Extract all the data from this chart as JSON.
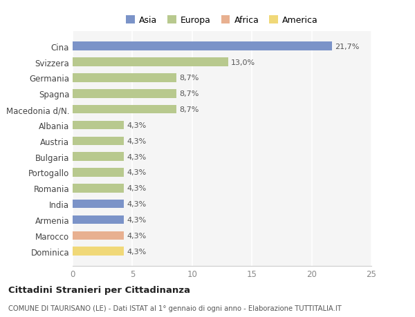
{
  "categories": [
    "Cina",
    "Svizzera",
    "Germania",
    "Spagna",
    "Macedonia d/N.",
    "Albania",
    "Austria",
    "Bulgaria",
    "Portogallo",
    "Romania",
    "India",
    "Armenia",
    "Marocco",
    "Dominica"
  ],
  "values": [
    21.7,
    13.0,
    8.7,
    8.7,
    8.7,
    4.3,
    4.3,
    4.3,
    4.3,
    4.3,
    4.3,
    4.3,
    4.3,
    4.3
  ],
  "colors": [
    "#7b93c8",
    "#b8c98e",
    "#b8c98e",
    "#b8c98e",
    "#b8c98e",
    "#b8c98e",
    "#b8c98e",
    "#b8c98e",
    "#b8c98e",
    "#b8c98e",
    "#7b93c8",
    "#7b93c8",
    "#e8b090",
    "#f0d878"
  ],
  "labels": [
    "21,7%",
    "13,0%",
    "8,7%",
    "8,7%",
    "8,7%",
    "4,3%",
    "4,3%",
    "4,3%",
    "4,3%",
    "4,3%",
    "4,3%",
    "4,3%",
    "4,3%",
    "4,3%"
  ],
  "xlim": [
    0,
    25
  ],
  "xticks": [
    0,
    5,
    10,
    15,
    20,
    25
  ],
  "title": "Cittadini Stranieri per Cittadinanza",
  "subtitle": "COMUNE DI TAURISANO (LE) - Dati ISTAT al 1° gennaio di ogni anno - Elaborazione TUTTITALIA.IT",
  "legend": [
    {
      "label": "Asia",
      "color": "#7b93c8"
    },
    {
      "label": "Europa",
      "color": "#b8c98e"
    },
    {
      "label": "Africa",
      "color": "#e8b090"
    },
    {
      "label": "America",
      "color": "#f0d878"
    }
  ],
  "background_color": "#ffffff",
  "plot_bg_color": "#f5f5f5",
  "grid_color": "#ffffff",
  "bar_height": 0.55
}
